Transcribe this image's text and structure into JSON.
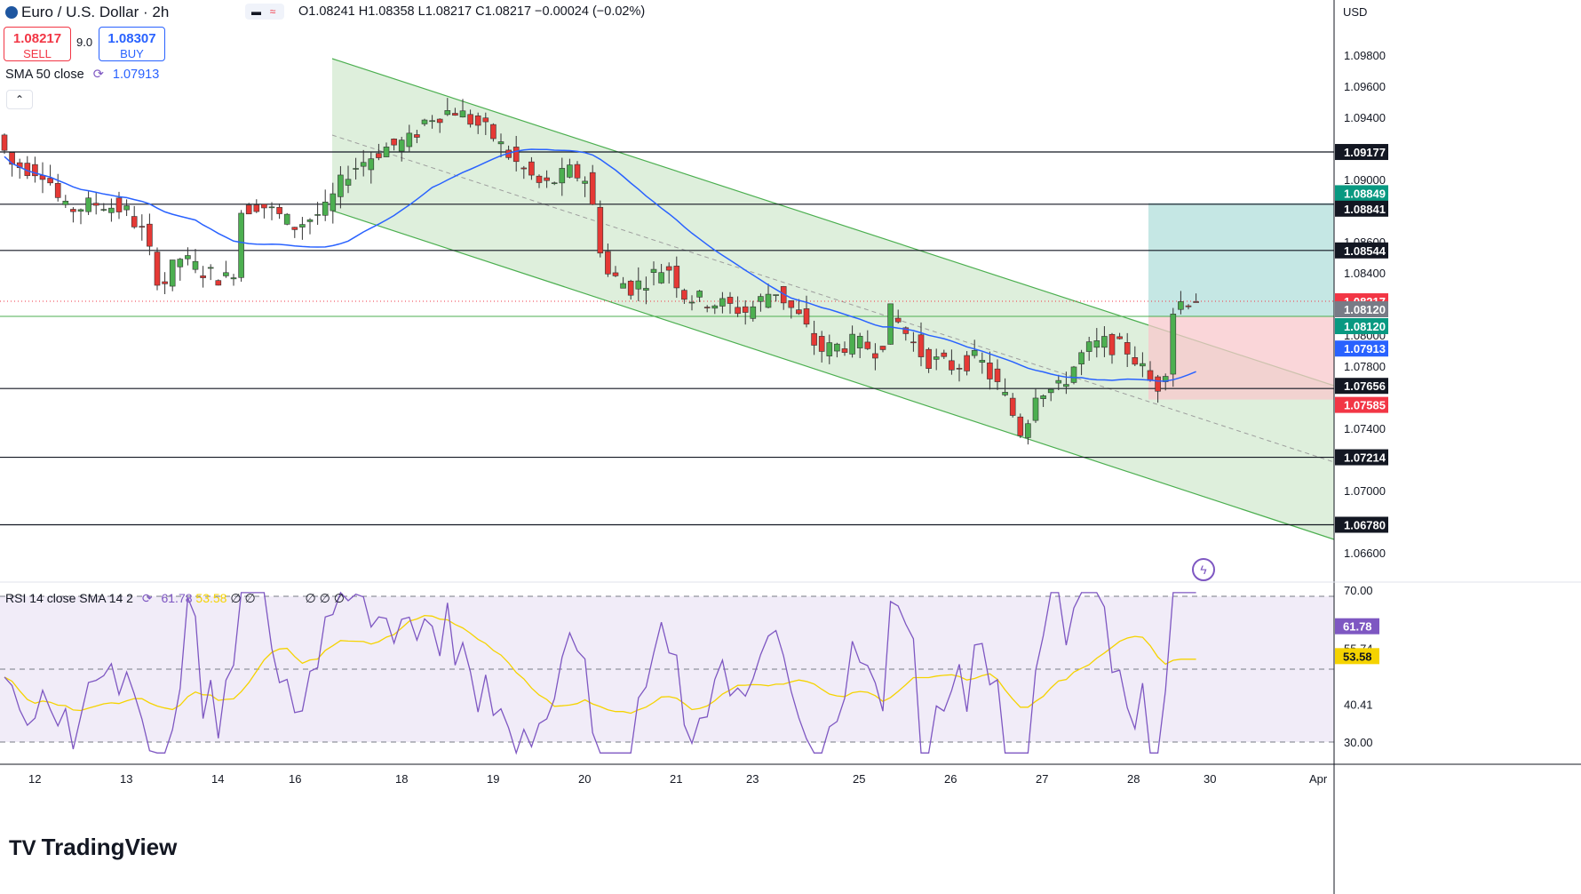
{
  "header": {
    "symbol": "Euro / U.S. Dollar",
    "timeframe": "2h",
    "ohlc": "O1.08241 H1.08358 L1.08217 C1.08217 −0.00024 (−0.02%)",
    "sell_price": "1.08217",
    "sell_label": "SELL",
    "spread": "9.0",
    "buy_price": "1.08307",
    "buy_label": "BUY",
    "sma_label": "SMA 50 close",
    "sma_value": "1.07913",
    "rsi_label": "RSI 14 close SMA 14 2",
    "rsi_value": "61.78",
    "rsi_sma_value": "53.58",
    "rsi_extra": "∅ ∅",
    "rsi_extra2": "∅ ∅ ∅",
    "currency": "USD",
    "logo": "TradingView"
  },
  "colors": {
    "up": "#26a69a",
    "down": "#ef5350",
    "candle_body_up": "#4caf50",
    "candle_body_down": "#e53935",
    "sma": "#2962ff",
    "rsi": "#7e57c2",
    "rsi_sma": "#f5d300",
    "channel_fill": "#d8ecd6",
    "channel_line": "#4caf50",
    "target_zone": "#b2dfdb",
    "stop_zone": "#f8c8cc"
  },
  "chart_data": {
    "type": "candlestick",
    "x_axis_labels": [
      "12",
      "13",
      "14",
      "16",
      "18",
      "19",
      "20",
      "21",
      "23",
      "25",
      "26",
      "27",
      "28",
      "30",
      "Apr"
    ],
    "y_axis_labels": [
      "1.09800",
      "1.09600",
      "1.09400",
      "1.09200",
      "1.09000",
      "1.08800",
      "1.08600",
      "1.08400",
      "1.08200",
      "1.08000",
      "1.07800",
      "1.07400",
      "1.07000",
      "1.06600"
    ],
    "ylim": [
      1.0645,
      1.1
    ],
    "levels": [
      {
        "price": 1.09177,
        "label": "1.09177",
        "style": "dark"
      },
      {
        "price": 1.08849,
        "label": "1.08849",
        "style": "green"
      },
      {
        "price": 1.08841,
        "label": "1.08841",
        "style": "dark"
      },
      {
        "price": 1.08544,
        "label": "1.08544",
        "style": "dark"
      },
      {
        "price": 1.08217,
        "label": "1.08217",
        "style": "red"
      },
      {
        "price": 1.0812,
        "label": "1.08120",
        "style": "gray"
      },
      {
        "price": 1.0812,
        "label": "1.08120",
        "style": "green"
      },
      {
        "price": 1.07913,
        "label": "1.07913",
        "style": "blue"
      },
      {
        "price": 1.07656,
        "label": "1.07656",
        "style": "dark"
      },
      {
        "price": 1.07585,
        "label": "1.07585",
        "style": "red"
      },
      {
        "price": 1.07214,
        "label": "1.07214",
        "style": "dark"
      },
      {
        "price": 1.0678,
        "label": "1.06780",
        "style": "dark"
      }
    ],
    "rsi": {
      "y_axis_labels": [
        "70.00",
        "55.74",
        "40.41",
        "30.00"
      ],
      "current": "61.78",
      "sma_current": "53.58",
      "levels": [
        70,
        50,
        30
      ]
    }
  }
}
